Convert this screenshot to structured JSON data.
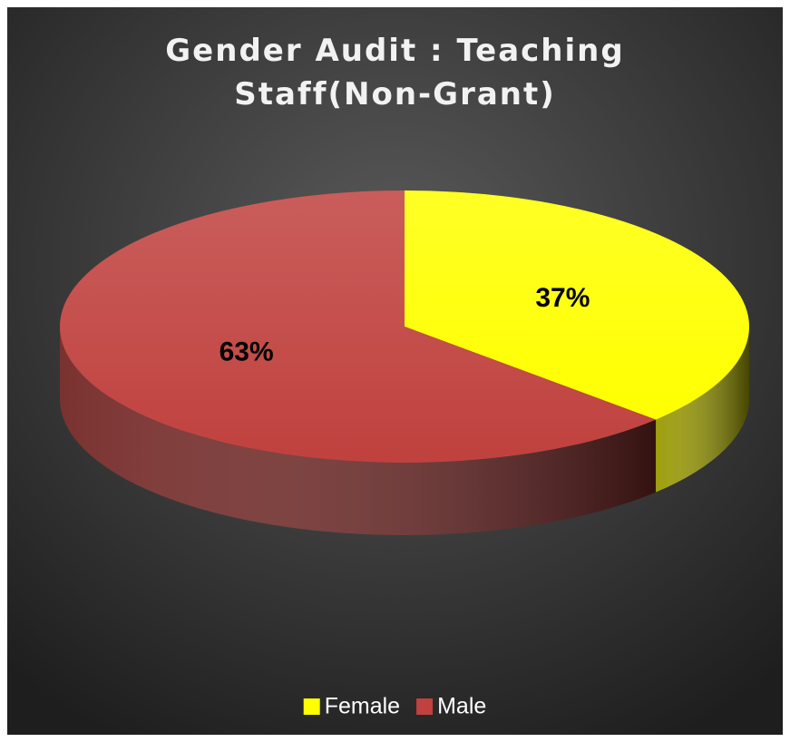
{
  "chart_data": {
    "type": "pie",
    "title": "Gender Audit : Teaching Staff(Non-Grant)",
    "categories": [
      "Female",
      "Male"
    ],
    "values": [
      37,
      63
    ],
    "value_labels": [
      "37%",
      "63%"
    ],
    "colors": [
      "#ffff00",
      "#c0413e"
    ],
    "legend": "bottom"
  }
}
